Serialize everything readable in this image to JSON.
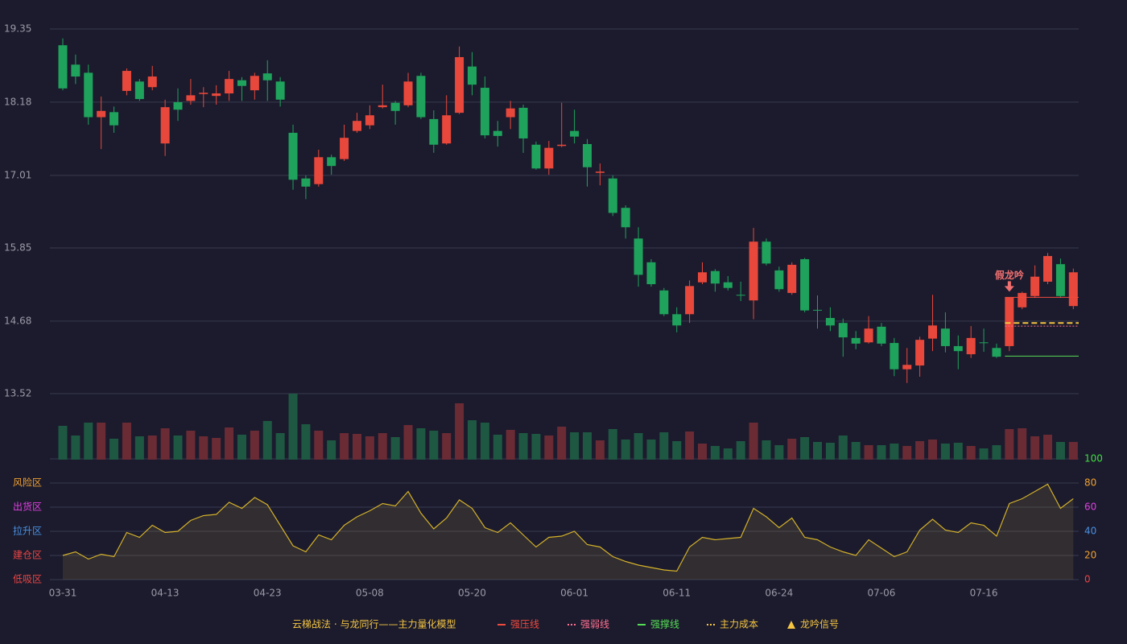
{
  "chart_data": {
    "type": "candlestick",
    "up_color": "#e8483b",
    "down_color": "#1fa35c",
    "volume_up_color": "#6a2b35",
    "volume_down_color": "#1e5842",
    "categories": [
      "03-31",
      null,
      null,
      null,
      null,
      null,
      null,
      null,
      "04-13",
      null,
      null,
      null,
      null,
      null,
      null,
      null,
      "04-23",
      null,
      null,
      null,
      null,
      null,
      null,
      null,
      "05-08",
      null,
      null,
      null,
      null,
      null,
      null,
      null,
      "05-20",
      null,
      null,
      null,
      null,
      null,
      null,
      null,
      "06-01",
      null,
      null,
      null,
      null,
      null,
      null,
      null,
      "06-11",
      null,
      null,
      null,
      null,
      null,
      null,
      null,
      "06-24",
      null,
      null,
      null,
      null,
      null,
      null,
      null,
      "07-06",
      null,
      null,
      null,
      null,
      null,
      null,
      null,
      "07-16",
      null,
      null,
      null,
      null,
      null,
      null,
      null
    ],
    "open": [
      19.09,
      18.78,
      18.65,
      17.94,
      18.02,
      18.36,
      18.51,
      18.42,
      17.52,
      18.18,
      18.2,
      18.31,
      18.28,
      18.32,
      18.53,
      18.37,
      18.64,
      18.51,
      17.69,
      16.96,
      16.87,
      17.3,
      17.27,
      17.72,
      17.81,
      18.1,
      18.17,
      18.13,
      18.6,
      17.91,
      17.52,
      18.01,
      18.75,
      18.41,
      17.72,
      17.94,
      18.09,
      17.5,
      17.12,
      17.48,
      17.72,
      17.51,
      17.05,
      16.96,
      16.49,
      16.0,
      15.62,
      15.17,
      14.79,
      14.79,
      15.3,
      15.48,
      15.3,
      15.1,
      15.01,
      15.95,
      15.49,
      15.13,
      15.67,
      14.86,
      14.73,
      14.65,
      14.41,
      14.34,
      14.59,
      14.33,
      13.91,
      13.97,
      14.4,
      14.56,
      14.28,
      14.15,
      14.34,
      14.25,
      14.28,
      14.9,
      15.08,
      15.31,
      15.59,
      14.92
    ],
    "high": [
      19.2,
      18.94,
      18.78,
      18.27,
      18.11,
      18.72,
      18.55,
      18.76,
      18.22,
      18.4,
      18.55,
      18.42,
      18.45,
      18.68,
      18.58,
      18.65,
      18.85,
      18.58,
      17.82,
      17.01,
      17.42,
      17.34,
      17.82,
      18.01,
      18.13,
      18.46,
      18.2,
      18.65,
      18.65,
      18.05,
      18.29,
      19.07,
      18.98,
      18.59,
      17.88,
      18.2,
      18.14,
      17.55,
      17.56,
      18.17,
      18.06,
      17.59,
      17.2,
      17.01,
      16.53,
      16.18,
      15.67,
      15.21,
      14.9,
      15.33,
      15.62,
      15.51,
      15.4,
      15.31,
      16.17,
      16.0,
      15.55,
      15.62,
      15.69,
      15.09,
      14.9,
      14.72,
      14.52,
      14.76,
      14.65,
      14.41,
      14.25,
      14.43,
      15.1,
      14.82,
      14.45,
      14.6,
      14.56,
      14.32,
      15.06,
      15.15,
      15.57,
      15.77,
      15.68,
      15.52
    ],
    "low": [
      18.37,
      18.47,
      17.82,
      17.43,
      17.69,
      18.29,
      18.2,
      18.37,
      17.32,
      17.88,
      18.14,
      18.1,
      18.14,
      18.2,
      18.2,
      18.22,
      18.2,
      18.11,
      16.78,
      16.63,
      16.83,
      17.02,
      17.24,
      17.69,
      17.75,
      18.08,
      17.82,
      18.1,
      17.91,
      17.37,
      17.5,
      17.99,
      18.29,
      17.6,
      17.47,
      17.75,
      17.37,
      17.1,
      17.02,
      17.46,
      17.52,
      16.83,
      16.85,
      16.36,
      16.0,
      15.23,
      15.23,
      14.76,
      14.5,
      14.65,
      15.27,
      15.15,
      15.17,
      15.0,
      14.71,
      15.57,
      15.15,
      15.1,
      14.82,
      14.56,
      14.52,
      14.11,
      14.23,
      14.32,
      14.28,
      13.8,
      13.69,
      13.79,
      14.2,
      14.18,
      13.91,
      14.09,
      14.19,
      14.09,
      14.2,
      14.87,
      15.05,
      15.27,
      15.05,
      14.87
    ],
    "close": [
      18.4,
      18.59,
      17.94,
      18.04,
      17.81,
      18.68,
      18.23,
      18.59,
      18.1,
      18.06,
      18.29,
      18.33,
      18.32,
      18.55,
      18.44,
      18.6,
      18.53,
      18.22,
      16.94,
      16.83,
      17.3,
      17.16,
      17.61,
      17.88,
      17.97,
      18.13,
      18.04,
      18.51,
      17.94,
      17.5,
      17.97,
      18.9,
      18.46,
      17.65,
      17.64,
      18.08,
      17.6,
      17.12,
      17.45,
      17.5,
      17.63,
      17.14,
      17.07,
      16.41,
      16.18,
      15.42,
      15.27,
      14.79,
      14.61,
      15.24,
      15.46,
      15.28,
      15.21,
      15.09,
      15.95,
      15.6,
      15.19,
      15.58,
      14.85,
      14.85,
      14.61,
      14.42,
      14.32,
      14.56,
      14.32,
      13.91,
      13.98,
      14.38,
      14.61,
      14.28,
      14.2,
      14.41,
      14.33,
      14.11,
      15.06,
      15.13,
      15.39,
      15.72,
      15.08,
      15.46
    ],
    "volume": [
      42,
      30,
      46,
      46,
      26,
      46,
      29,
      30,
      39,
      30,
      36,
      29,
      27,
      40,
      31,
      36,
      48,
      33,
      82,
      44,
      36,
      24,
      33,
      32,
      29,
      33,
      28,
      43,
      39,
      36,
      33,
      70,
      49,
      46,
      31,
      37,
      33,
      32,
      30,
      41,
      34,
      34,
      24,
      38,
      25,
      33,
      25,
      34,
      23,
      35,
      20,
      17,
      14,
      23,
      46,
      24,
      18,
      26,
      28,
      22,
      21,
      30,
      22,
      18,
      18,
      20,
      17,
      23,
      25,
      20,
      21,
      17,
      14,
      18,
      38,
      39,
      29,
      31,
      22,
      22
    ],
    "ylim": [
      13.52,
      19.35
    ],
    "yticks": [
      13.52,
      14.68,
      15.85,
      17.01,
      18.18,
      19.35
    ],
    "grid": true,
    "levels": [
      {
        "name": "强压线",
        "value": 15.06,
        "color": "#f04a3e",
        "style": "solid",
        "start_index": 74
      },
      {
        "name": "强弱线",
        "value": 14.6,
        "color": "#ff7090",
        "style": "dotted",
        "start_index": 74
      },
      {
        "name": "强撑线",
        "value": 14.12,
        "color": "#55dd55",
        "style": "solid",
        "start_index": 74
      },
      {
        "name": "主力成本",
        "value": 14.65,
        "color": "#f5c542",
        "style": "dashed",
        "start_index": 74
      }
    ],
    "annotation": {
      "text": "假龙吟",
      "index": 74,
      "color": "#f07070"
    },
    "signal_legend": {
      "name": "龙吟信号",
      "color": "#f5c542"
    },
    "legend_title": "云梯战法 · 与龙同行——主力量化模型",
    "legend_title_color": "#f5c542",
    "oscillator": {
      "type": "area",
      "color": "#d4b12a",
      "values": [
        20,
        23,
        17,
        21,
        19,
        39,
        35,
        45,
        39,
        40,
        49,
        53,
        54,
        64,
        59,
        68,
        62,
        45,
        28,
        23,
        37,
        33,
        45,
        52,
        57,
        63,
        61,
        73,
        55,
        42,
        51,
        66,
        59,
        43,
        39,
        47,
        37,
        27,
        35,
        36,
        40,
        29,
        27,
        19,
        15,
        12,
        10,
        8,
        7,
        27,
        35,
        33,
        34,
        35,
        59,
        52,
        43,
        51,
        35,
        33,
        27,
        23,
        20,
        33,
        26,
        19,
        23,
        41,
        50,
        41,
        39,
        47,
        45,
        36,
        63,
        67,
        73,
        79,
        59,
        67
      ],
      "ylim": [
        0,
        100
      ],
      "yticks": [
        0,
        20,
        40,
        60,
        80,
        100
      ],
      "ytick_colors": [
        "#e84545",
        "#f0a030",
        "#4a90e2",
        "#e040e0",
        "#f0a030",
        "#44dd44"
      ],
      "zones": [
        {
          "value": 80,
          "label": "风险区",
          "color": "#f0a030"
        },
        {
          "value": 60,
          "label": "出货区",
          "color": "#e040e0"
        },
        {
          "value": 40,
          "label": "拉升区",
          "color": "#4a90e2"
        },
        {
          "value": 20,
          "label": "建仓区",
          "color": "#e84545"
        },
        {
          "value": 0,
          "label": "低吸区",
          "color": "#e84545"
        }
      ]
    }
  }
}
